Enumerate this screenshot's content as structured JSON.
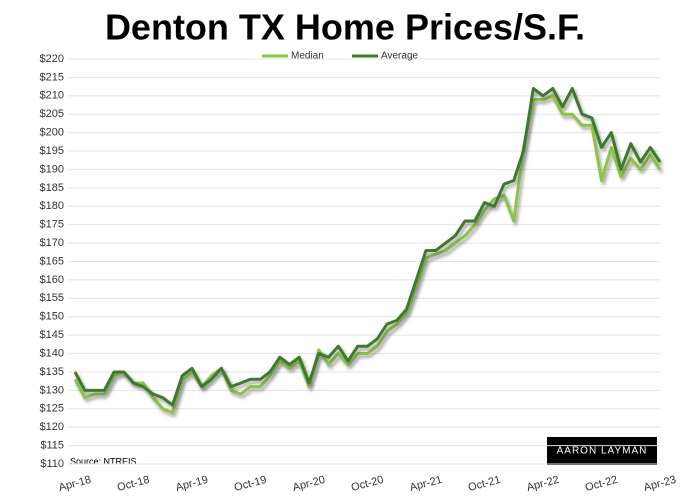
{
  "chart_data": {
    "type": "line",
    "title": "Denton TX Home Prices/S.F.",
    "source": "Source: NTREIS",
    "logo": "AARON LAYMAN",
    "categories": [
      "Apr-18",
      null,
      null,
      null,
      null,
      null,
      "Oct-18",
      null,
      null,
      null,
      null,
      null,
      "Apr-19",
      null,
      null,
      null,
      null,
      null,
      "Oct-19",
      null,
      null,
      null,
      null,
      null,
      "Apr-20",
      null,
      null,
      null,
      null,
      null,
      "Oct-20",
      null,
      null,
      null,
      null,
      null,
      "Apr-21",
      null,
      null,
      null,
      null,
      null,
      "Oct-21",
      null,
      null,
      null,
      null,
      null,
      "Apr-22",
      null,
      null,
      null,
      null,
      null,
      "Oct-22",
      null,
      null,
      null,
      null,
      null,
      "Apr-23"
    ],
    "series": [
      {
        "name": "Median",
        "color": "#8cc63f",
        "values": [
          133,
          128,
          129,
          129,
          134,
          135,
          132,
          132,
          128,
          125,
          124,
          133,
          135,
          131,
          134,
          136,
          130,
          129,
          131,
          131,
          134,
          138,
          136,
          138,
          131,
          141,
          137,
          140,
          137,
          140,
          140,
          142,
          146,
          148,
          151,
          158,
          166,
          167,
          168,
          170,
          172,
          175,
          179,
          182,
          183,
          176,
          196,
          209,
          209,
          210,
          205,
          205,
          202,
          202,
          187,
          196,
          188,
          193,
          190,
          194,
          190
        ]
      },
      {
        "name": "Average",
        "color": "#3c7a2a",
        "values": [
          135,
          130,
          130,
          130,
          135,
          135,
          132,
          131,
          129,
          128,
          126,
          134,
          136,
          131,
          133,
          136,
          131,
          132,
          133,
          133,
          135,
          139,
          137,
          139,
          132,
          140,
          139,
          142,
          138,
          142,
          142,
          144,
          148,
          149,
          152,
          160,
          168,
          168,
          170,
          172,
          176,
          176,
          181,
          180,
          186,
          187,
          195,
          212,
          210,
          212,
          207,
          212,
          205,
          204,
          196,
          200,
          190,
          197,
          192,
          196,
          192
        ]
      }
    ],
    "ylim": [
      110,
      220
    ],
    "yticks": [
      {
        "value": 110,
        "label": "$110"
      },
      {
        "value": 115,
        "label": "$115"
      },
      {
        "value": 120,
        "label": "$120"
      },
      {
        "value": 125,
        "label": "$125"
      },
      {
        "value": 130,
        "label": "$130"
      },
      {
        "value": 135,
        "label": "$135"
      },
      {
        "value": 140,
        "label": "$140"
      },
      {
        "value": 145,
        "label": "$145"
      },
      {
        "value": 150,
        "label": "$150"
      },
      {
        "value": 155,
        "label": "$155"
      },
      {
        "value": 160,
        "label": "$160"
      },
      {
        "value": 165,
        "label": "$165"
      },
      {
        "value": 170,
        "label": "$170"
      },
      {
        "value": 175,
        "label": "$175"
      },
      {
        "value": 180,
        "label": "$180"
      },
      {
        "value": 185,
        "label": "$185"
      },
      {
        "value": 190,
        "label": "$190"
      },
      {
        "value": 195,
        "label": "$195"
      },
      {
        "value": 200,
        "label": "$200"
      },
      {
        "value": 205,
        "label": "$205"
      },
      {
        "value": 210,
        "label": "$210"
      },
      {
        "value": 215,
        "label": "$215"
      },
      {
        "value": 220,
        "label": "$220"
      }
    ],
    "grid": true
  }
}
